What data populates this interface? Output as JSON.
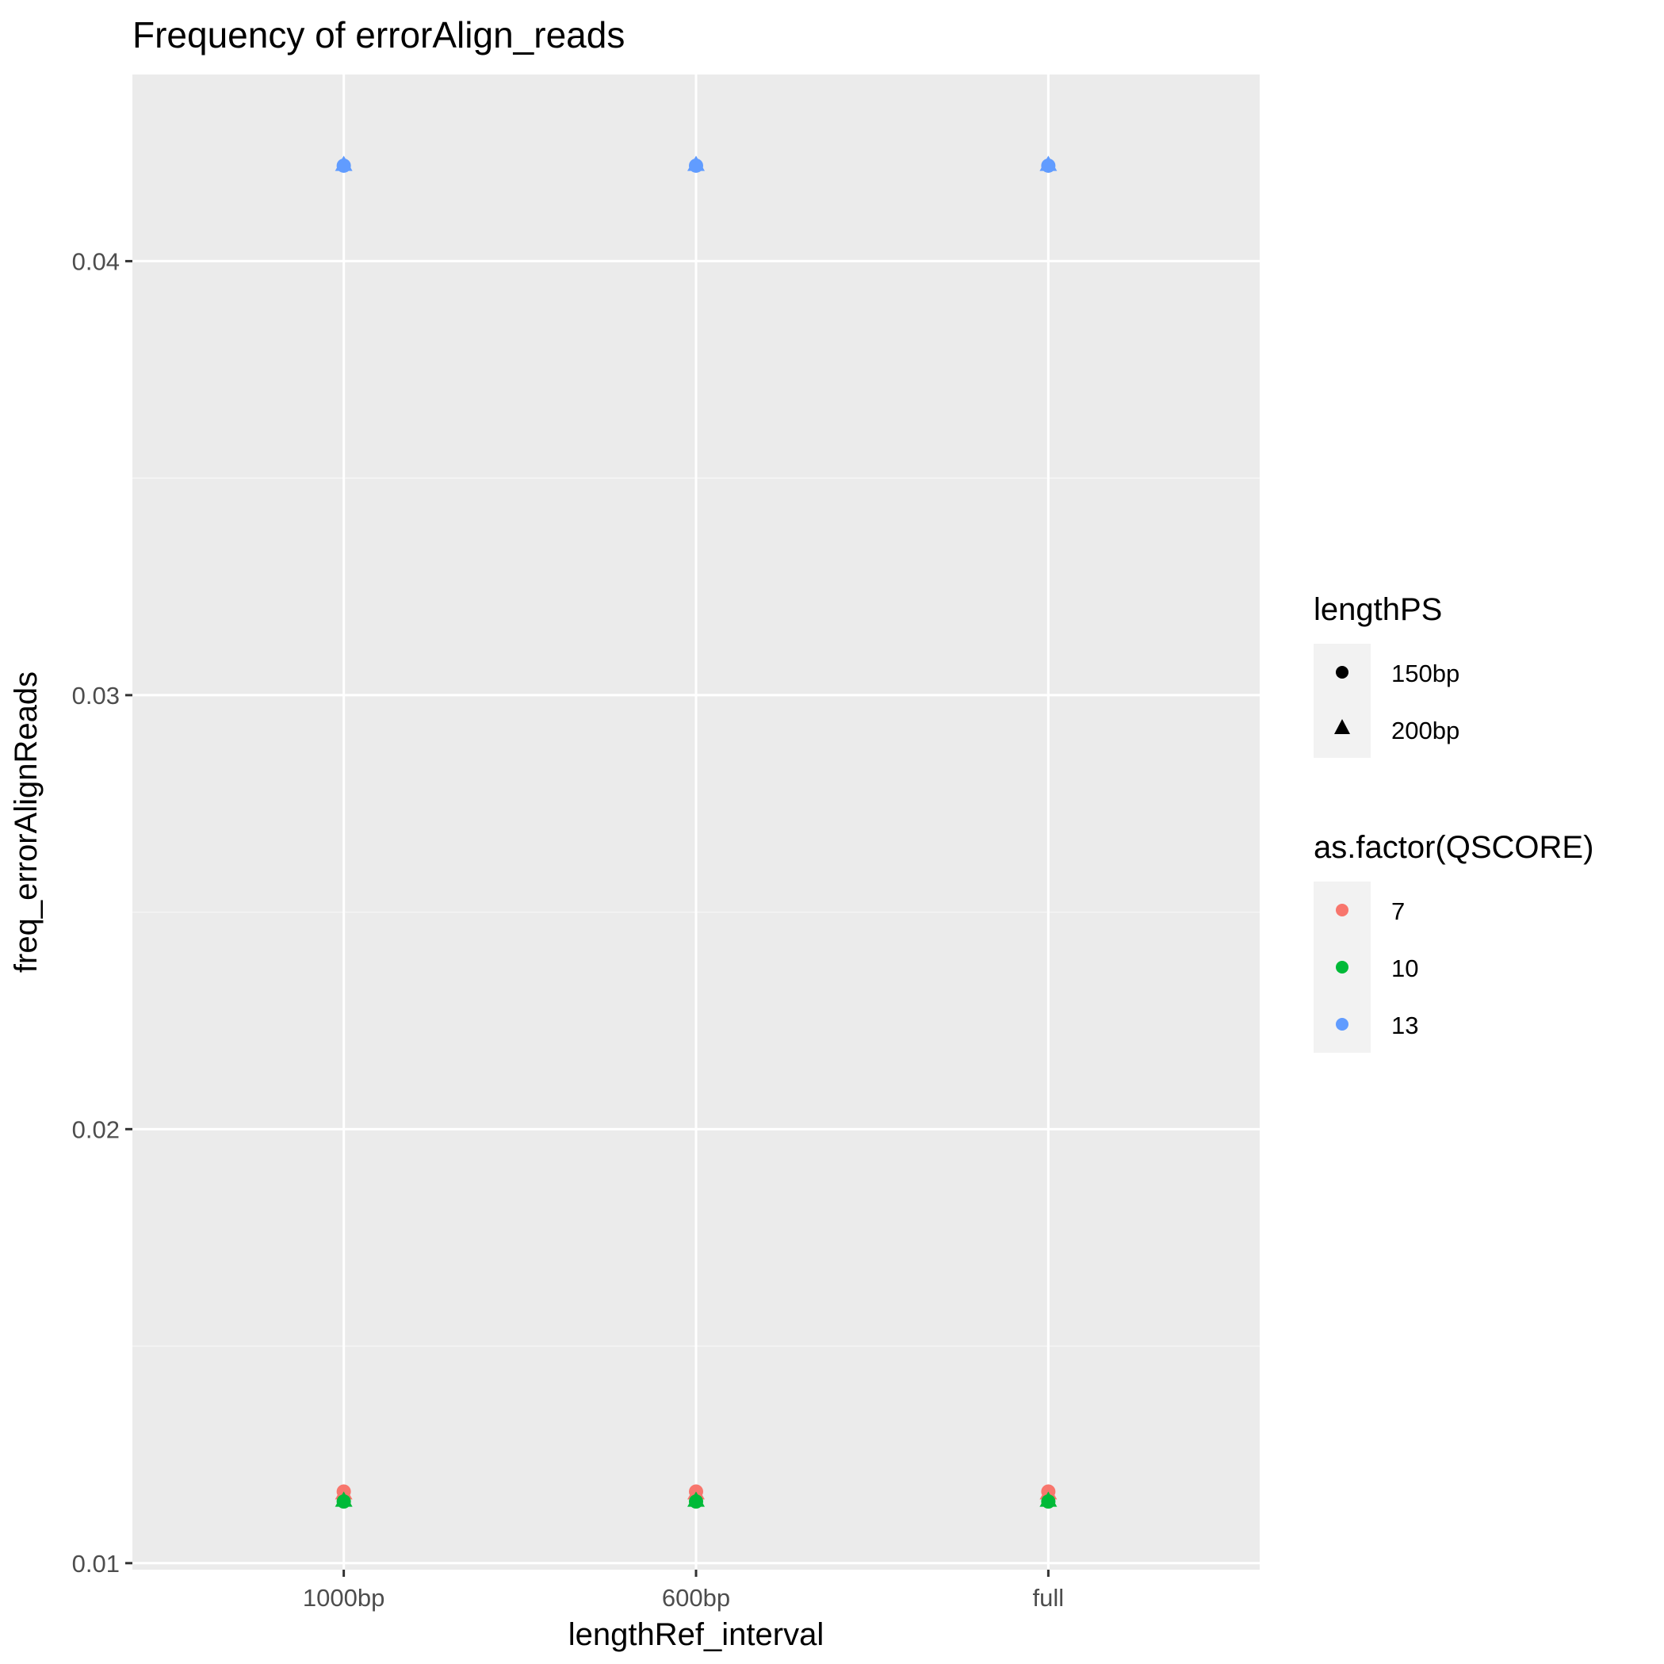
{
  "chart_data": {
    "type": "scatter",
    "title": "Frequency of errorAlign_reads",
    "xlabel": "lengthRef_interval",
    "ylabel": "freq_errorAlignReads",
    "categories": [
      "1000bp",
      "600bp",
      "full"
    ],
    "ylim": [
      0.00985,
      0.0443
    ],
    "yticks": [
      0.01,
      0.02,
      0.03,
      0.04
    ],
    "ytick_labels": [
      "0.01",
      "0.02",
      "0.03",
      "0.04"
    ],
    "grid": true,
    "legend_position": "right",
    "shape_legend": {
      "title": "lengthPS",
      "entries": [
        {
          "label": "150bp",
          "shape": "circle"
        },
        {
          "label": "200bp",
          "shape": "triangle"
        }
      ]
    },
    "color_legend": {
      "title": "as.factor(QSCORE)",
      "entries": [
        {
          "label": "7",
          "color": "#F8766D"
        },
        {
          "label": "10",
          "color": "#00BA38"
        },
        {
          "label": "13",
          "color": "#619CFF"
        }
      ]
    },
    "series": [
      {
        "qscore": "7",
        "lengthPS": "150bp",
        "color": "#F8766D",
        "shape": "circle",
        "x": [
          "1000bp",
          "600bp",
          "full"
        ],
        "y": [
          0.01165,
          0.01165,
          0.01165
        ]
      },
      {
        "qscore": "7",
        "lengthPS": "200bp",
        "color": "#F8766D",
        "shape": "triangle",
        "x": [
          "1000bp",
          "600bp",
          "full"
        ],
        "y": [
          0.01162,
          0.01162,
          0.01162
        ]
      },
      {
        "qscore": "10",
        "lengthPS": "150bp",
        "color": "#00BA38",
        "shape": "circle",
        "x": [
          "1000bp",
          "600bp",
          "full"
        ],
        "y": [
          0.01142,
          0.01142,
          0.01142
        ]
      },
      {
        "qscore": "10",
        "lengthPS": "200bp",
        "color": "#00BA38",
        "shape": "triangle",
        "x": [
          "1000bp",
          "600bp",
          "full"
        ],
        "y": [
          0.01145,
          0.01145,
          0.01145
        ]
      },
      {
        "qscore": "13",
        "lengthPS": "150bp",
        "color": "#619CFF",
        "shape": "circle",
        "x": [
          "1000bp",
          "600bp",
          "full"
        ],
        "y": [
          0.0422,
          0.0422,
          0.0422
        ]
      },
      {
        "qscore": "13",
        "lengthPS": "200bp",
        "color": "#619CFF",
        "shape": "triangle",
        "x": [
          "1000bp",
          "600bp",
          "full"
        ],
        "y": [
          0.04223,
          0.04223,
          0.04223
        ]
      }
    ]
  }
}
